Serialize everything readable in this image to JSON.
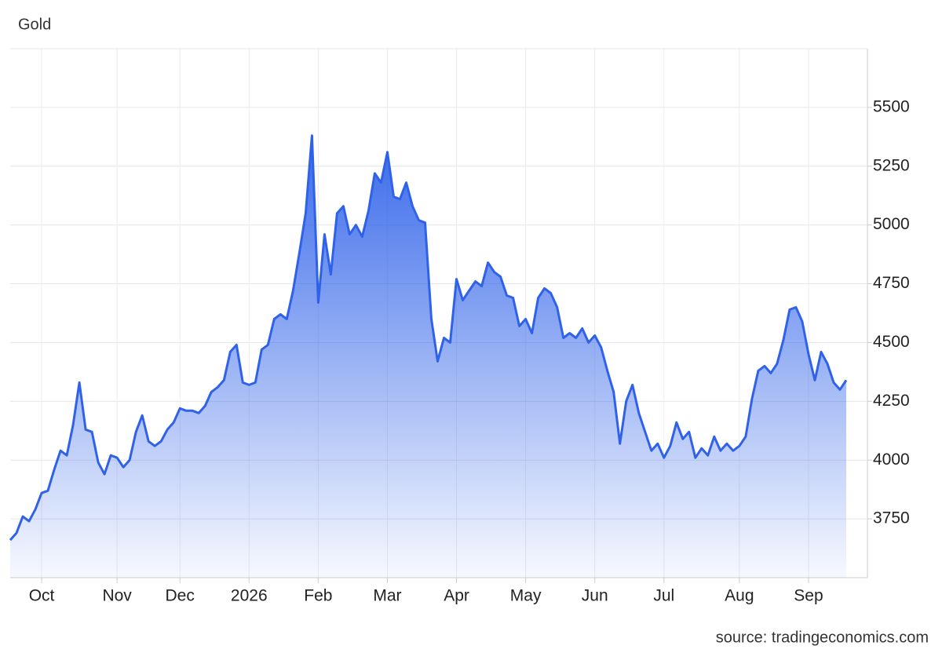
{
  "chart_data": {
    "type": "area",
    "title": "Gold",
    "source": "source: tradingeconomics.com",
    "color": "#2f62e9",
    "grid": true,
    "y_axis_side": "right",
    "ylim": [
      3500,
      5750
    ],
    "yticks": [
      3750,
      4000,
      4250,
      4500,
      4750,
      5000,
      5250,
      5500
    ],
    "categories": [
      null,
      null,
      null,
      null,
      null,
      "Oct",
      null,
      null,
      null,
      null,
      null,
      null,
      null,
      null,
      null,
      null,
      null,
      "Nov",
      null,
      null,
      null,
      null,
      null,
      null,
      null,
      null,
      null,
      "Dec",
      null,
      null,
      null,
      null,
      null,
      null,
      null,
      null,
      null,
      null,
      "2026",
      null,
      null,
      null,
      null,
      null,
      null,
      null,
      null,
      null,
      null,
      "Feb",
      null,
      null,
      null,
      null,
      null,
      null,
      null,
      null,
      null,
      null,
      "Mar",
      null,
      null,
      null,
      null,
      null,
      null,
      null,
      null,
      null,
      null,
      "Apr",
      null,
      null,
      null,
      null,
      null,
      null,
      null,
      null,
      null,
      null,
      "May",
      null,
      null,
      null,
      null,
      null,
      null,
      null,
      null,
      null,
      null,
      "Jun",
      null,
      null,
      null,
      null,
      null,
      null,
      null,
      null,
      null,
      null,
      "Jul",
      null,
      null,
      null,
      null,
      null,
      null,
      null,
      null,
      null,
      null,
      null,
      "Aug",
      null,
      null,
      null,
      null,
      null,
      null,
      null,
      null,
      null,
      null,
      "Sep",
      null,
      null,
      null,
      null,
      null,
      null
    ],
    "values": [
      3660,
      3690,
      3760,
      3740,
      3790,
      3860,
      3870,
      3960,
      4040,
      4020,
      4150,
      4330,
      4130,
      4120,
      3990,
      3940,
      4020,
      4010,
      3970,
      4000,
      4120,
      4190,
      4080,
      4060,
      4080,
      4130,
      4160,
      4220,
      4210,
      4210,
      4200,
      4230,
      4290,
      4310,
      4340,
      4460,
      4490,
      4330,
      4320,
      4330,
      4470,
      4490,
      4600,
      4620,
      4600,
      4720,
      4880,
      5050,
      5380,
      4670,
      4960,
      4790,
      5050,
      5080,
      4960,
      5000,
      4950,
      5060,
      5220,
      5180,
      5310,
      5120,
      5110,
      5180,
      5080,
      5020,
      5010,
      4600,
      4420,
      4520,
      4500,
      4770,
      4680,
      4720,
      4760,
      4740,
      4840,
      4800,
      4780,
      4700,
      4690,
      4570,
      4600,
      4540,
      4690,
      4730,
      4710,
      4650,
      4520,
      4540,
      4520,
      4560,
      4500,
      4530,
      4480,
      4380,
      4290,
      4070,
      4250,
      4320,
      4200,
      4120,
      4040,
      4070,
      4010,
      4060,
      4160,
      4090,
      4120,
      4010,
      4050,
      4020,
      4100,
      4040,
      4070,
      4040,
      4060,
      4100,
      4260,
      4380,
      4400,
      4370,
      4410,
      4510,
      4640,
      4650,
      4590,
      4450,
      4340,
      4460,
      4410,
      4330,
      4300,
      4340
    ]
  }
}
